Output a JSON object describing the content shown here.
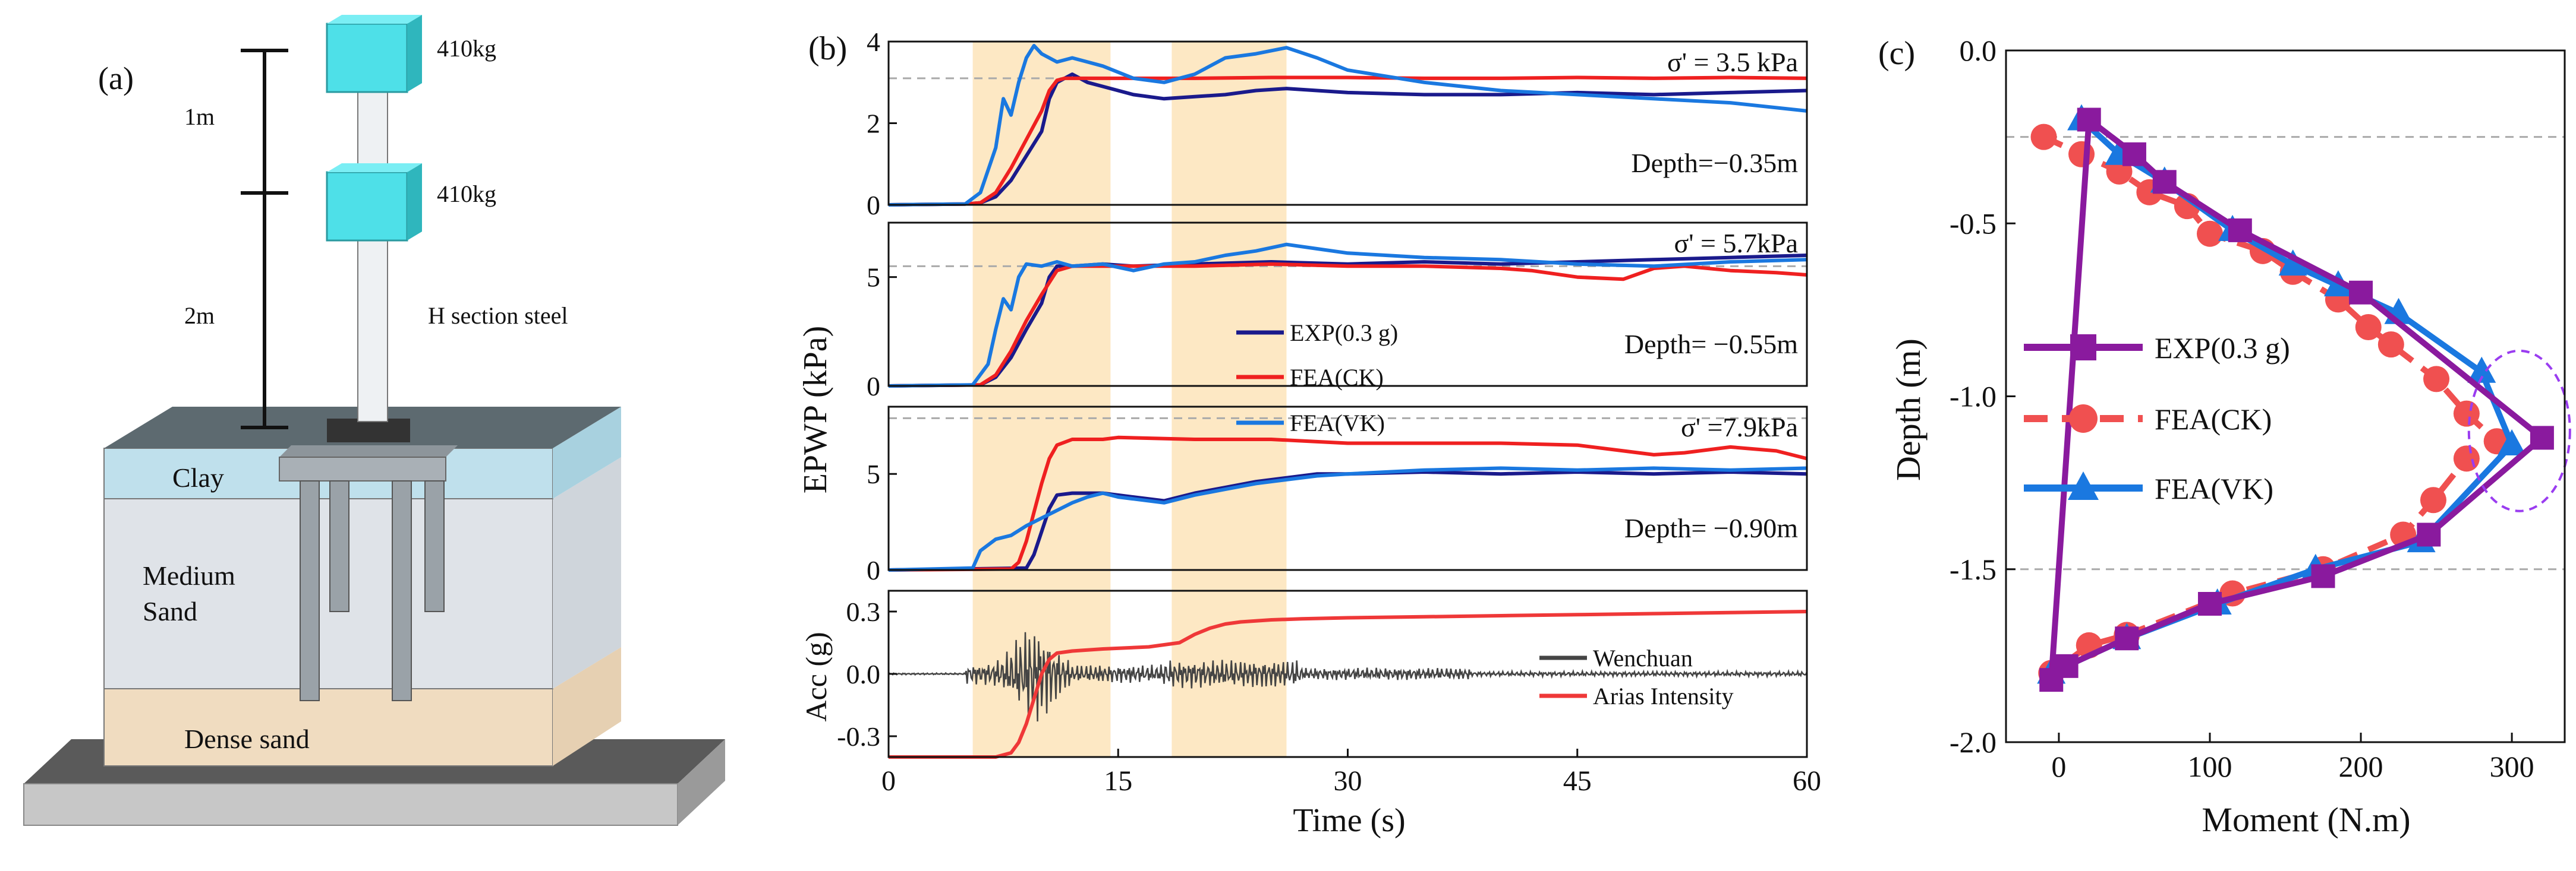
{
  "panel_a": {
    "label": "(a)",
    "mass_top": "410kg",
    "mass_mid": "410kg",
    "dim_top": "1m",
    "dim_bottom": "2m",
    "steel_label": "H section steel",
    "layers": [
      "Clay",
      "Medium",
      "Sand",
      "Dense sand"
    ]
  },
  "colors": {
    "exp_b": "#1a1a8c",
    "fea_ck": "#ef2020",
    "fea_vk": "#1a78e0",
    "exp_c": "#8a1a9e",
    "fea_ck_c": "#f05050",
    "fea_vk_c": "#1a78e0",
    "shade": "#fde8c4",
    "wenchuan": "#444444",
    "arias": "#ef3838",
    "ellipse": "#9a3cf0"
  },
  "chart_data": [
    {
      "type": "line",
      "panel_label": "(b)",
      "title": "",
      "xlabel": "Time (s)",
      "ylabel": "EPWP (kPa)",
      "xlim": [
        0,
        60
      ],
      "x_ticks": [
        "0",
        "15",
        "30",
        "45",
        "60"
      ],
      "shaded_intervals": [
        [
          5.5,
          14.5
        ],
        [
          18.5,
          26
        ]
      ],
      "legend": [
        "EXP(0.3 g)",
        "FEA(CK)",
        "FEA(VK)"
      ],
      "subplots": [
        {
          "ylim": [
            0,
            4
          ],
          "y_ticks": [
            "0",
            "2",
            "4"
          ],
          "sigma_label": "σ' = 3.5 kPa",
          "depth_label": "Depth=−0.35m",
          "ref_line": 3.1,
          "series": [
            {
              "name": "EXP(0.3 g)",
              "x": [
                0,
                5,
                6,
                7,
                8,
                9,
                10,
                10.5,
                11,
                12,
                13,
                14,
                16,
                18,
                20,
                22,
                24,
                26,
                28,
                30,
                35,
                40,
                45,
                50,
                55,
                60
              ],
              "y": [
                0,
                0.02,
                0.05,
                0.2,
                0.6,
                1.2,
                1.8,
                2.6,
                3.0,
                3.2,
                3.0,
                2.9,
                2.7,
                2.6,
                2.65,
                2.7,
                2.8,
                2.85,
                2.8,
                2.75,
                2.7,
                2.7,
                2.75,
                2.7,
                2.75,
                2.8
              ]
            },
            {
              "name": "FEA(CK)",
              "x": [
                0,
                5,
                6,
                7,
                8,
                9,
                10,
                10.5,
                11,
                11.5,
                12,
                13,
                15,
                20,
                25,
                30,
                35,
                40,
                45,
                50,
                55,
                60
              ],
              "y": [
                0,
                0.02,
                0.05,
                0.3,
                0.9,
                1.6,
                2.3,
                2.8,
                3.05,
                3.1,
                3.1,
                3.1,
                3.1,
                3.1,
                3.12,
                3.12,
                3.1,
                3.1,
                3.12,
                3.1,
                3.12,
                3.1
              ]
            },
            {
              "name": "FEA(VK)",
              "x": [
                0,
                5,
                6,
                7,
                7.5,
                8,
                8.5,
                9,
                9.5,
                10,
                11,
                12,
                13,
                14,
                16,
                18,
                20,
                22,
                24,
                26,
                28,
                30,
                35,
                40,
                45,
                50,
                55,
                60
              ],
              "y": [
                0,
                0.02,
                0.3,
                1.4,
                2.6,
                2.2,
                3.0,
                3.6,
                3.9,
                3.7,
                3.5,
                3.6,
                3.5,
                3.4,
                3.1,
                3.0,
                3.2,
                3.6,
                3.7,
                3.85,
                3.6,
                3.3,
                3.0,
                2.8,
                2.7,
                2.6,
                2.5,
                2.3
              ]
            }
          ]
        },
        {
          "ylim": [
            0,
            7.5
          ],
          "y_ticks": [
            "0",
            "5"
          ],
          "sigma_label": "σ' = 5.7kPa",
          "depth_label": "Depth= −0.55m",
          "ref_line": 5.5,
          "series": [
            {
              "name": "EXP(0.3 g)",
              "x": [
                0,
                6,
                7,
                8,
                9,
                10,
                10.5,
                11,
                12,
                14,
                16,
                20,
                25,
                30,
                35,
                40,
                45,
                50,
                55,
                60
              ],
              "y": [
                0,
                0.05,
                0.4,
                1.3,
                2.6,
                3.8,
                5.0,
                5.5,
                5.5,
                5.6,
                5.5,
                5.6,
                5.7,
                5.6,
                5.7,
                5.6,
                5.7,
                5.8,
                5.9,
                6.0
              ]
            },
            {
              "name": "FEA(CK)",
              "x": [
                0,
                6,
                7,
                8,
                9,
                10,
                11,
                12,
                15,
                20,
                25,
                30,
                35,
                40,
                42,
                45,
                48,
                50,
                52,
                55,
                58,
                60
              ],
              "y": [
                0,
                0.05,
                0.5,
                1.6,
                3.0,
                4.2,
                5.3,
                5.5,
                5.5,
                5.5,
                5.6,
                5.5,
                5.5,
                5.4,
                5.3,
                5.0,
                4.9,
                5.4,
                5.5,
                5.3,
                5.2,
                5.1
              ]
            },
            {
              "name": "FEA(VK)",
              "x": [
                0,
                5.5,
                6.5,
                7,
                7.5,
                8,
                8.5,
                9,
                10,
                11,
                12,
                14,
                16,
                18,
                20,
                22,
                24,
                26,
                28,
                30,
                35,
                40,
                45,
                50,
                55,
                60
              ],
              "y": [
                0,
                0.05,
                1.0,
                2.6,
                4.0,
                3.5,
                5.0,
                5.6,
                5.5,
                5.7,
                5.5,
                5.6,
                5.3,
                5.6,
                5.7,
                6.0,
                6.2,
                6.5,
                6.3,
                6.1,
                5.9,
                5.8,
                5.6,
                5.5,
                5.7,
                5.8
              ]
            }
          ]
        },
        {
          "ylim": [
            0,
            8.5
          ],
          "y_ticks": [
            "0",
            "5"
          ],
          "sigma_label": "σ' =7.9kPa",
          "depth_label": "Depth= −0.90m",
          "ref_line": 7.9,
          "series": [
            {
              "name": "EXP(0.3 g)",
              "x": [
                0,
                9,
                9.5,
                10,
                10.5,
                11,
                12,
                14,
                16,
                18,
                20,
                22,
                24,
                26,
                28,
                30,
                35,
                40,
                45,
                50,
                55,
                60
              ],
              "y": [
                0,
                0.1,
                0.8,
                2.0,
                3.2,
                3.9,
                4.0,
                4.0,
                3.8,
                3.6,
                4.0,
                4.3,
                4.6,
                4.8,
                5.0,
                5.0,
                5.1,
                5.0,
                5.1,
                5.0,
                5.1,
                5.0
              ]
            },
            {
              "name": "FEA(CK)",
              "x": [
                0,
                8,
                8.5,
                9,
                9.5,
                10,
                10.5,
                11,
                12,
                13,
                14,
                15,
                20,
                25,
                30,
                35,
                40,
                45,
                48,
                50,
                52,
                55,
                58,
                60
              ],
              "y": [
                0,
                0.05,
                0.4,
                1.5,
                3.0,
                4.5,
                5.8,
                6.5,
                6.8,
                6.8,
                6.8,
                6.9,
                6.8,
                6.8,
                6.6,
                6.6,
                6.6,
                6.5,
                6.2,
                6.0,
                6.1,
                6.4,
                6.2,
                5.8
              ]
            },
            {
              "name": "FEA(VK)",
              "x": [
                0,
                5.5,
                6,
                7,
                8,
                9,
                10,
                11,
                12,
                13,
                14,
                15,
                16,
                18,
                20,
                22,
                24,
                26,
                28,
                30,
                35,
                40,
                45,
                50,
                55,
                60
              ],
              "y": [
                0,
                0.1,
                1.0,
                1.6,
                1.8,
                2.3,
                2.7,
                3.1,
                3.5,
                3.8,
                4.0,
                3.8,
                3.7,
                3.5,
                3.9,
                4.2,
                4.5,
                4.7,
                4.9,
                5.0,
                5.2,
                5.3,
                5.2,
                5.3,
                5.2,
                5.3
              ]
            }
          ]
        },
        {
          "ylim": [
            -0.4,
            0.4
          ],
          "y_ticks": [
            "0.3",
            "0.0",
            "-0.3"
          ],
          "ylabel": "Acc (g)",
          "legend": [
            "Wenchuan",
            "Arias Intensity"
          ],
          "series": [
            {
              "name": "Arias Intensity",
              "x": [
                0,
                7,
                8,
                8.5,
                9,
                9.5,
                10,
                10.5,
                11,
                12,
                14,
                17,
                19,
                20,
                21,
                22,
                23,
                24,
                25,
                27,
                30,
                35,
                40,
                45,
                50,
                55,
                60
              ],
              "y": [
                -0.4,
                -0.4,
                -0.38,
                -0.33,
                -0.24,
                -0.12,
                0.0,
                0.07,
                0.1,
                0.11,
                0.12,
                0.13,
                0.15,
                0.19,
                0.22,
                0.24,
                0.25,
                0.255,
                0.26,
                0.265,
                0.27,
                0.275,
                0.28,
                0.285,
                0.29,
                0.295,
                0.3
              ]
            }
          ]
        }
      ]
    },
    {
      "type": "line",
      "panel_label": "(c)",
      "title": "",
      "xlabel": "Moment (N.m)",
      "ylabel": "Depth (m)",
      "xlim": [
        -35,
        335
      ],
      "ylim": [
        -2.0,
        0.0
      ],
      "x_ticks": [
        "0",
        "100",
        "200",
        "300"
      ],
      "y_ticks": [
        "0.0",
        "-0.5",
        "-1.0",
        "-1.5",
        "-2.0"
      ],
      "ref_lines_y": [
        -0.25,
        -1.5
      ],
      "legend": [
        "EXP(0.3 g)",
        "FEA(CK)",
        "FEA(VK)"
      ],
      "series": [
        {
          "name": "EXP(0.3 g)",
          "marker": "square",
          "x": [
            -5,
            20,
            50,
            70,
            120,
            200,
            320,
            245,
            175,
            100,
            45,
            5
          ],
          "y": [
            -1.82,
            -0.2,
            -0.3,
            -0.38,
            -0.52,
            -0.7,
            -1.12,
            -1.4,
            -1.52,
            -1.6,
            -1.7,
            -1.78
          ]
        },
        {
          "name": "FEA(CK)",
          "marker": "circle",
          "x": [
            -10,
            15,
            40,
            60,
            85,
            100,
            135,
            155,
            185,
            205,
            220,
            250,
            270,
            290,
            270,
            248,
            228,
            175,
            115,
            45,
            20,
            -5
          ],
          "y": [
            -0.25,
            -0.3,
            -0.35,
            -0.41,
            -0.45,
            -0.53,
            -0.58,
            -0.64,
            -0.72,
            -0.8,
            -0.85,
            -0.95,
            -1.05,
            -1.13,
            -1.18,
            -1.3,
            -1.4,
            -1.5,
            -1.57,
            -1.69,
            -1.72,
            -1.8
          ]
        },
        {
          "name": "FEA(VK)",
          "marker": "triangle",
          "x": [
            15,
            40,
            70,
            115,
            155,
            185,
            225,
            280,
            300,
            240,
            170,
            105,
            45,
            -5
          ],
          "y": [
            -0.2,
            -0.3,
            -0.38,
            -0.52,
            -0.62,
            -0.68,
            -0.76,
            -0.93,
            -1.14,
            -1.42,
            -1.5,
            -1.6,
            -1.7,
            -1.8
          ]
        }
      ]
    }
  ]
}
